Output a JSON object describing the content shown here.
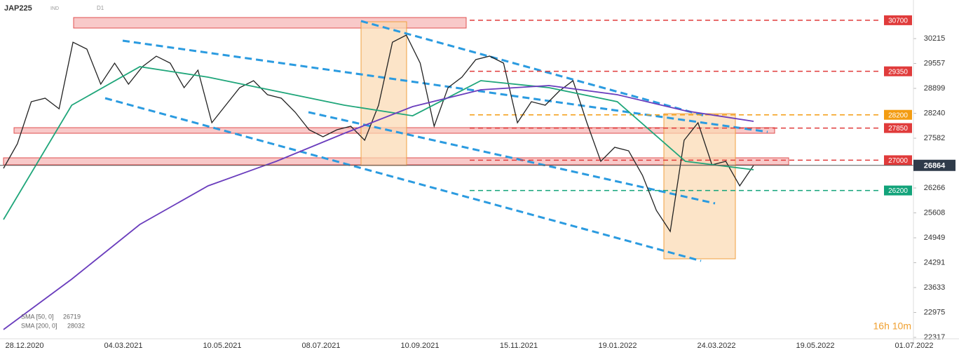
{
  "header": {
    "symbol": "JAP225",
    "market": "IND",
    "timeframe": "D1"
  },
  "chart_data": {
    "type": "line",
    "series": [
      {
        "color": "#222222",
        "values": [
          26785,
          27434,
          28547,
          28640,
          28360,
          30120,
          29937,
          29010,
          29566,
          29010,
          29473,
          29750,
          29566,
          28917,
          29381,
          27990,
          28454,
          28917,
          29103,
          28732,
          28640,
          28268,
          27805,
          27620,
          27805,
          27898,
          27527,
          28454,
          30120,
          30308,
          29566,
          27898,
          28917,
          29195,
          29659,
          29752,
          29566,
          27990,
          28547,
          28454,
          28825,
          29103,
          27990,
          26971,
          27342,
          27249,
          26600,
          25673,
          25117,
          27527,
          27990,
          26878,
          26971,
          26322,
          26864
        ]
      },
      {
        "name": "SMA [50, 0]",
        "last": 26719,
        "color": "#1fa67a",
        "values": [
          25432,
          28454,
          29473,
          29195,
          28825,
          28454,
          28175,
          29103,
          28917,
          28547,
          26971,
          26748
        ]
      },
      {
        "name": "SMA [200, 0]",
        "last": 28032,
        "color": "#6a3dbd",
        "values": [
          22522,
          23856,
          25302,
          26322,
          26971,
          27713,
          28417,
          28862,
          28973,
          28732,
          28305,
          28027
        ]
      }
    ],
    "ylim": [
      22317,
      31050
    ],
    "yticks": [
      30215,
      29557,
      28899,
      28240,
      27582,
      26266,
      25608,
      24949,
      24291,
      23633,
      22975,
      22317
    ],
    "x_labels": [
      "28.12.2020",
      "04.03.2021",
      "10.05.2021",
      "08.07.2021",
      "10.09.2021",
      "15.11.2021",
      "19.01.2022",
      "24.03.2022",
      "19.05.2022",
      "01.07.2022"
    ],
    "levels": [
      {
        "value": 30700,
        "color": "#e03b3b"
      },
      {
        "value": 29350,
        "color": "#e03b3b"
      },
      {
        "value": 28200,
        "color": "#f39c12"
      },
      {
        "value": 27850,
        "color": "#e03b3b"
      },
      {
        "value": 27000,
        "color": "#e03b3b"
      },
      {
        "value": 26200,
        "color": "#12a37a"
      }
    ],
    "current_price": 26864,
    "timer": "16h 10m"
  }
}
